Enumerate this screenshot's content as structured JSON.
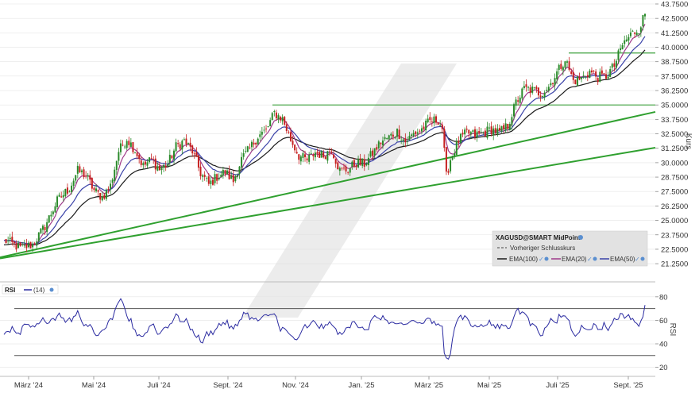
{
  "chart_data": {
    "type": "candlestick",
    "instrument": "XAGUSD@SMART MidPoint",
    "y_axis_label": "Kurs",
    "ylim": [
      20.5,
      43.75
    ],
    "y_ticks": [
      "43.7500",
      "42.5000",
      "41.2500",
      "40.0000",
      "38.7500",
      "37.5000",
      "36.2500",
      "35.0000",
      "33.7500",
      "32.5000",
      "31.2500",
      "30.0000",
      "28.7500",
      "27.5000",
      "26.2500",
      "25.0000",
      "23.7500",
      "22.5000",
      "21.2500"
    ],
    "x_ticks": [
      "März '24",
      "Mai '24",
      "Juli '24",
      "Sept. '24",
      "Nov. '24",
      "Jan. '25",
      "März '25",
      "Mai '25",
      "Juli '25",
      "Sept. '25"
    ],
    "price_path": [
      [
        0,
        23.3
      ],
      [
        8,
        22.6
      ],
      [
        14,
        22.9
      ],
      [
        20,
        24.5
      ],
      [
        26,
        26.7
      ],
      [
        32,
        27.8
      ],
      [
        36,
        29.3
      ],
      [
        40,
        28.9
      ],
      [
        44,
        27.6
      ],
      [
        48,
        27.0
      ],
      [
        52,
        28.0
      ],
      [
        56,
        31.0
      ],
      [
        60,
        32.1
      ],
      [
        64,
        31.1
      ],
      [
        68,
        29.7
      ],
      [
        72,
        30.3
      ],
      [
        76,
        29.4
      ],
      [
        80,
        29.9
      ],
      [
        84,
        31.4
      ],
      [
        88,
        31.9
      ],
      [
        92,
        31.0
      ],
      [
        96,
        29.1
      ],
      [
        100,
        28.1
      ],
      [
        104,
        28.8
      ],
      [
        108,
        29.2
      ],
      [
        112,
        28.4
      ],
      [
        116,
        30.3
      ],
      [
        120,
        31.2
      ],
      [
        124,
        32.3
      ],
      [
        128,
        32.8
      ],
      [
        132,
        34.3
      ],
      [
        136,
        33.8
      ],
      [
        140,
        32.0
      ],
      [
        144,
        30.6
      ],
      [
        148,
        30.2
      ],
      [
        152,
        30.9
      ],
      [
        156,
        30.6
      ],
      [
        160,
        31.2
      ],
      [
        164,
        29.3
      ],
      [
        168,
        29.4
      ],
      [
        172,
        30.0
      ],
      [
        176,
        29.9
      ],
      [
        180,
        30.8
      ],
      [
        184,
        31.8
      ],
      [
        188,
        32.2
      ],
      [
        192,
        32.7
      ],
      [
        196,
        31.8
      ],
      [
        200,
        32.5
      ],
      [
        204,
        32.9
      ],
      [
        208,
        33.6
      ],
      [
        212,
        33.7
      ],
      [
        214,
        33.0
      ],
      [
        216,
        28.8
      ],
      [
        218,
        30.3
      ],
      [
        222,
        31.9
      ],
      [
        226,
        32.6
      ],
      [
        230,
        32.4
      ],
      [
        234,
        32.6
      ],
      [
        238,
        32.9
      ],
      [
        242,
        32.6
      ],
      [
        246,
        33.2
      ],
      [
        250,
        35.2
      ],
      [
        254,
        36.4
      ],
      [
        258,
        36.3
      ],
      [
        262,
        36.0
      ],
      [
        266,
        36.6
      ],
      [
        270,
        37.8
      ],
      [
        274,
        39.0
      ],
      [
        278,
        37.1
      ],
      [
        282,
        37.3
      ],
      [
        286,
        37.9
      ],
      [
        290,
        37.4
      ],
      [
        294,
        37.5
      ],
      [
        298,
        38.4
      ],
      [
        302,
        40.2
      ],
      [
        306,
        41.1
      ],
      [
        310,
        41.6
      ],
      [
        313,
        42.9
      ]
    ],
    "ema_lengths": [
      100,
      20,
      50
    ],
    "horizontal_lines": [
      35.0,
      39.5
    ],
    "rsi": {
      "label": "RSI",
      "period_label": "(14)",
      "ylim": [
        15,
        88
      ],
      "ticks": [
        "80",
        "60",
        "40",
        "20"
      ],
      "y_label": "RSI",
      "levels": [
        70,
        30
      ],
      "last_value": 73
    }
  },
  "legend": {
    "title": "XAGUSD@SMART MidPoint",
    "prev_close": "Vorheriger Schlusskurs",
    "ema100": "EMA(100)",
    "ema20": "EMA(20)",
    "ema50": "EMA(50)"
  },
  "colors": {
    "candle_up": "#2a8a2a",
    "candle_down": "#c62020",
    "ema100": "#1a1a1a",
    "ema20": "#a03a8a",
    "ema50": "#3a42a8",
    "trendline": "#2fa02f",
    "hline": "#3ea03e",
    "rsi_line": "#2a2aa0",
    "grid": "#e5e5e5",
    "legend_bg": "#e2e2e2"
  }
}
